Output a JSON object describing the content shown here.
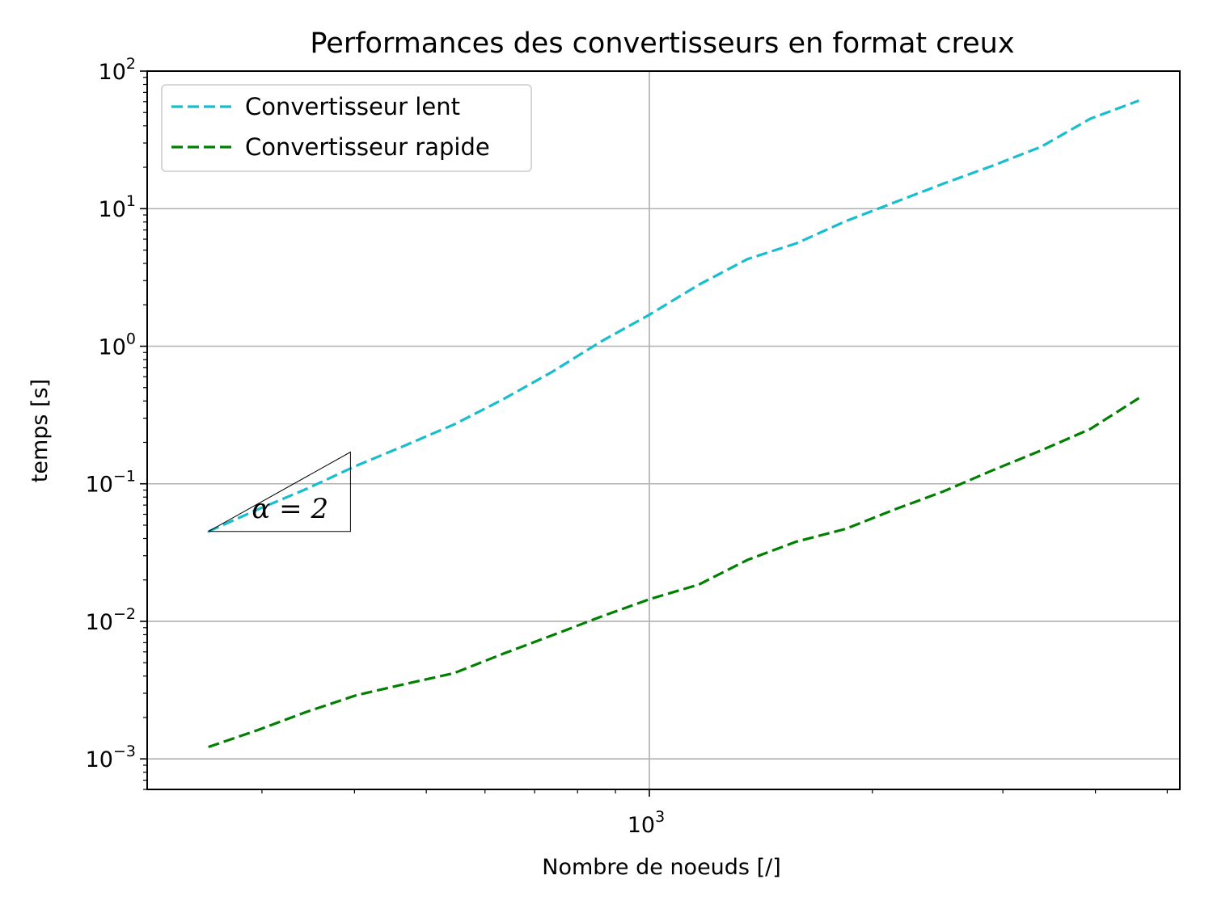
{
  "chart_data": {
    "type": "line",
    "title": "Performances des convertisseurs en format creux",
    "xlabel": "Nombre de noeuds [/]",
    "ylabel": "temps [s]",
    "xscale": "log",
    "yscale": "log",
    "xlim": [
      210,
      5200
    ],
    "ylim": [
      0.0006,
      100
    ],
    "grid": true,
    "legend_position": "top-left",
    "x_major_ticks": [
      {
        "value": 1000,
        "base": "10",
        "exp": "3"
      }
    ],
    "y_major_ticks": [
      {
        "value": 0.001,
        "base": "10",
        "exp": "−3"
      },
      {
        "value": 0.01,
        "base": "10",
        "exp": "−2"
      },
      {
        "value": 0.1,
        "base": "10",
        "exp": "−1"
      },
      {
        "value": 1,
        "base": "10",
        "exp": "0"
      },
      {
        "value": 10,
        "base": "10",
        "exp": "1"
      },
      {
        "value": 100,
        "base": "10",
        "exp": "2"
      }
    ],
    "series": [
      {
        "name": "Convertisseur lent",
        "color": "#17becf",
        "style": "dashed",
        "x": [
          254,
          296,
          345,
          402,
          468,
          545,
          634,
          739,
          860,
          1001,
          1166,
          1357,
          1580,
          1840,
          2142,
          2494,
          2903,
          3380,
          3935,
          4580
        ],
        "y": [
          0.045,
          0.065,
          0.092,
          0.135,
          0.19,
          0.27,
          0.41,
          0.65,
          1.08,
          1.7,
          2.8,
          4.3,
          5.6,
          8.1,
          11.1,
          15.2,
          20.5,
          28.2,
          45.0,
          61.0
        ]
      },
      {
        "name": "Convertisseur rapide",
        "color": "#008000",
        "style": "dashed",
        "x": [
          254,
          296,
          345,
          402,
          468,
          545,
          634,
          739,
          860,
          1001,
          1166,
          1357,
          1580,
          1840,
          2142,
          2494,
          2903,
          3380,
          3935,
          4580
        ],
        "y": [
          0.00122,
          0.00162,
          0.0022,
          0.0029,
          0.0035,
          0.0042,
          0.0058,
          0.0079,
          0.0108,
          0.0145,
          0.0185,
          0.028,
          0.038,
          0.047,
          0.065,
          0.088,
          0.125,
          0.175,
          0.25,
          0.42
        ]
      }
    ],
    "annotations": [
      {
        "text": "α = 2",
        "type": "slope-triangle",
        "from": [
          254,
          0.045
        ],
        "to": [
          395,
          0.17
        ]
      }
    ]
  }
}
